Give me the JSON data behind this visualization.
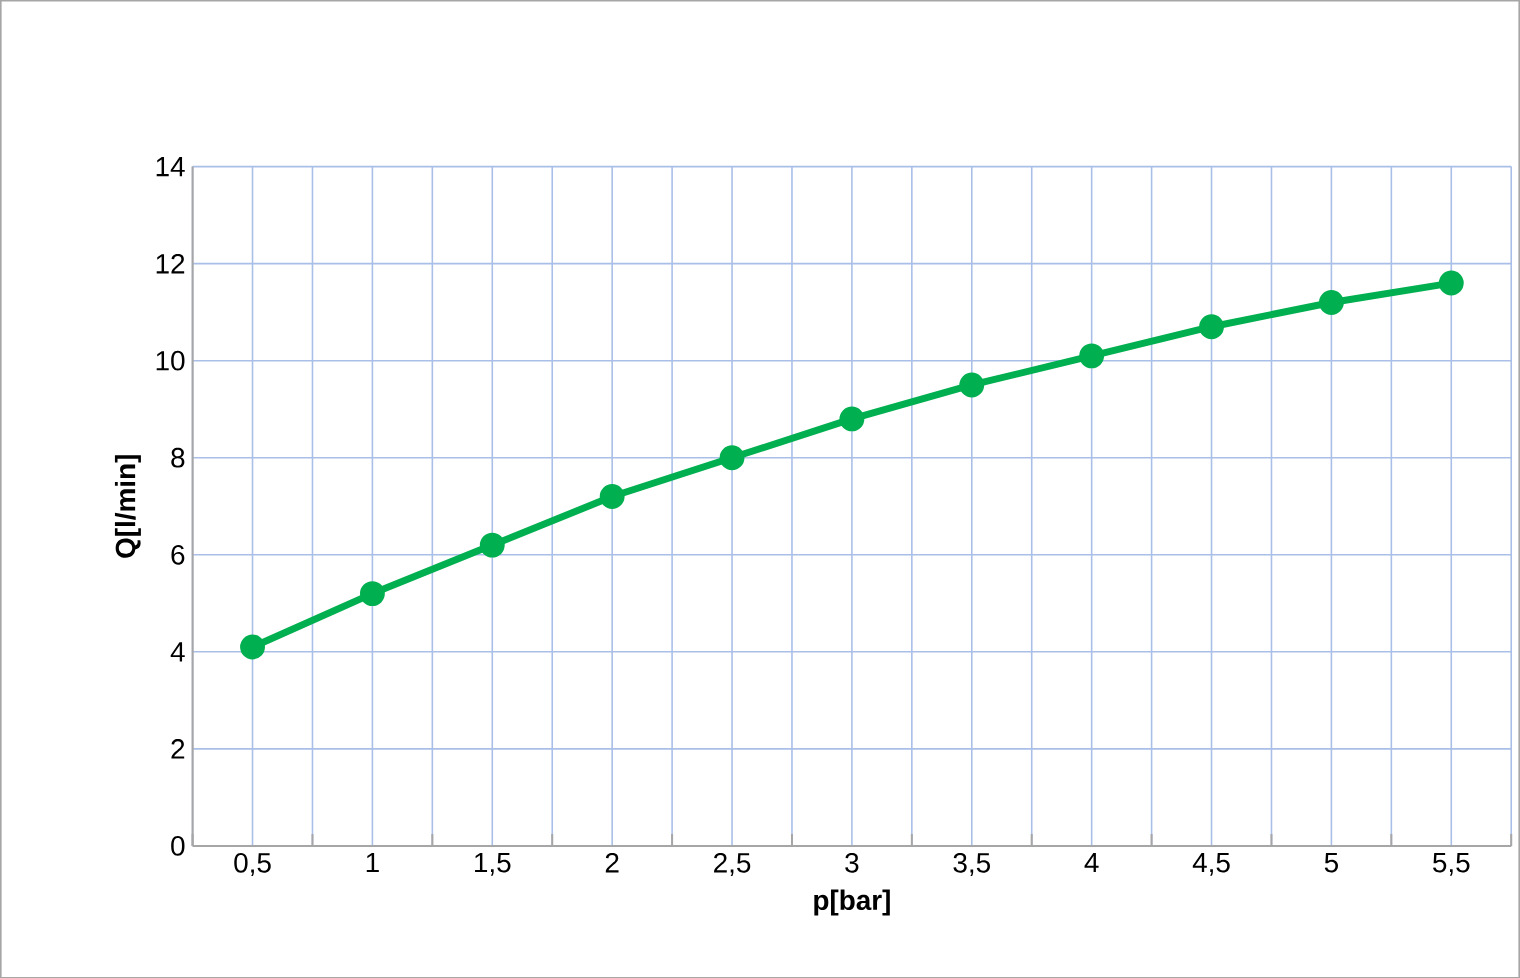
{
  "chart_data": {
    "type": "line",
    "xlabel": "p[bar]",
    "ylabel": "Q[l/min]",
    "categories": [
      "0,5",
      "1",
      "1,5",
      "2",
      "2,5",
      "3",
      "3,5",
      "4",
      "4,5",
      "5",
      "5,5"
    ],
    "series": [
      {
        "color": "#00b050",
        "values": [
          4.1,
          5.2,
          6.2,
          7.2,
          8.0,
          8.8,
          9.5,
          10.1,
          10.7,
          11.2,
          11.6
        ]
      }
    ],
    "ylim": [
      0,
      14
    ],
    "yticks": [
      0,
      2,
      4,
      6,
      8,
      10,
      12,
      14
    ],
    "grid": true,
    "marker": "circle",
    "line_style": "solid"
  }
}
